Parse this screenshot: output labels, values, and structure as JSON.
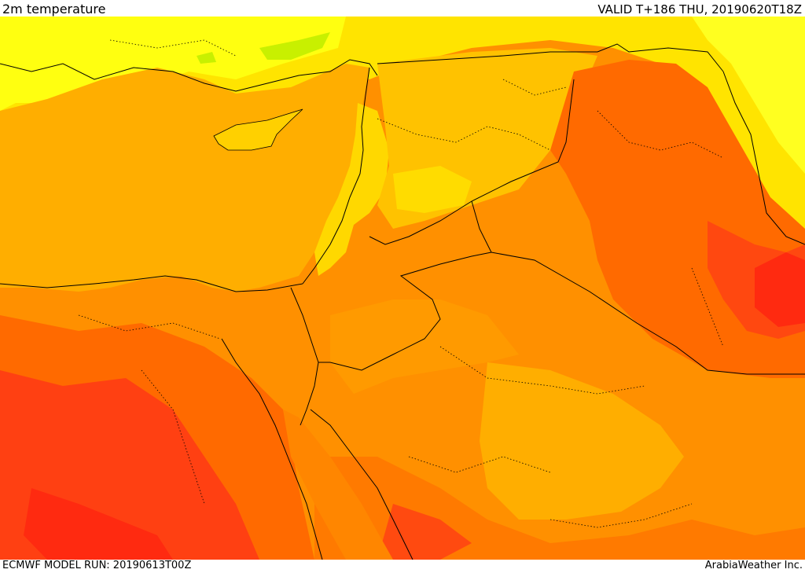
{
  "header": {
    "product_title": "2m temperature",
    "valid_time": "VALID T+186 THU, 20190620T18Z"
  },
  "footer": {
    "model_run": "ECMWF MODEL RUN: 20190613T00Z",
    "credit": "ArabiaWeather Inc."
  },
  "map": {
    "variable": "2m temperature",
    "region": "Eastern Mediterranean and Middle East",
    "colors": {
      "yellow": "#ffff00",
      "light_yellow": "#ffec00",
      "gold": "#ffd000",
      "amber": "#ffae00",
      "orange": "#ff8c00",
      "dark_orange": "#ff6a00",
      "red_orange": "#ff4a10",
      "red": "#ff2a10",
      "light_green": "#b8f000",
      "boundary_line": "#000000"
    }
  }
}
